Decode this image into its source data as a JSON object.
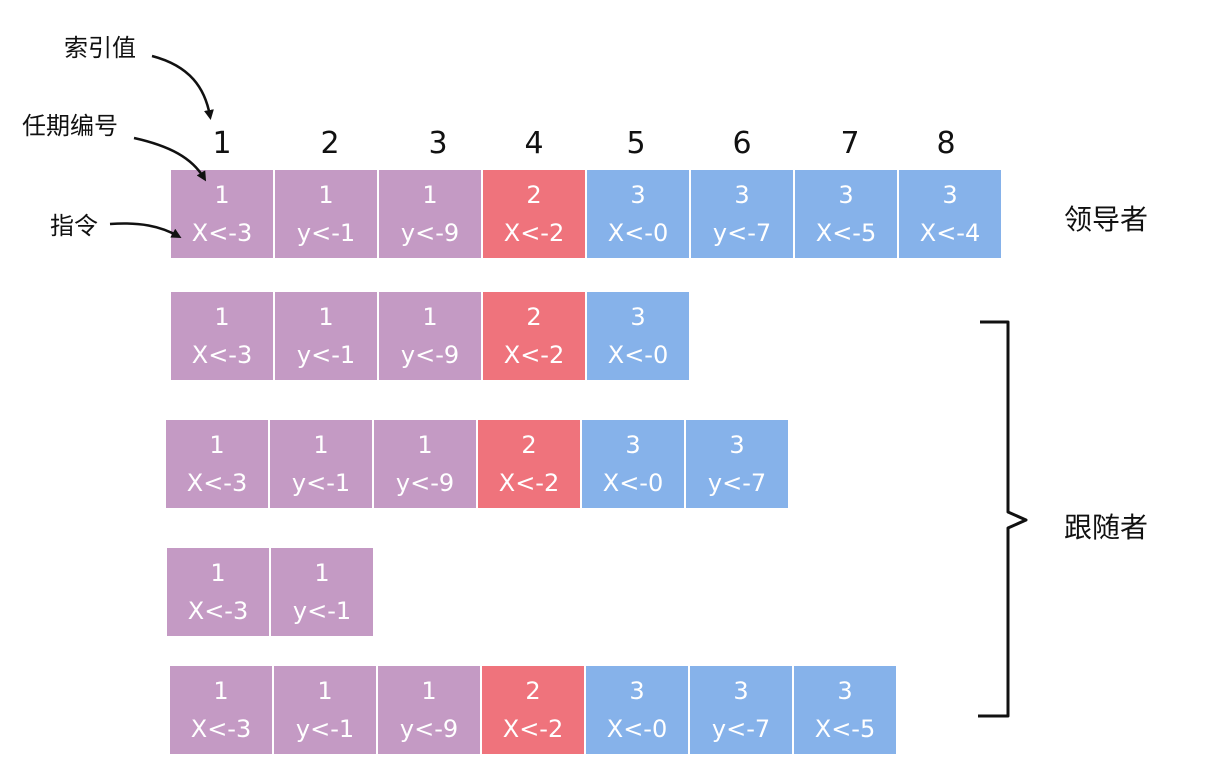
{
  "annotations": {
    "index_label": "索引值",
    "term_label": "任期编号",
    "command_label": "指令"
  },
  "indices": [
    "1",
    "2",
    "3",
    "4",
    "5",
    "6",
    "7",
    "8"
  ],
  "colors": {
    "term1": "#c49ac4",
    "term2": "#ef737c",
    "term3": "#86b2ea"
  },
  "leader": {
    "label": "领导者",
    "entries": [
      {
        "term": "1",
        "cmd": "X<-3"
      },
      {
        "term": "1",
        "cmd": "y<-1"
      },
      {
        "term": "1",
        "cmd": "y<-9"
      },
      {
        "term": "2",
        "cmd": "X<-2"
      },
      {
        "term": "3",
        "cmd": "X<-0"
      },
      {
        "term": "3",
        "cmd": "y<-7"
      },
      {
        "term": "3",
        "cmd": "X<-5"
      },
      {
        "term": "3",
        "cmd": "X<-4"
      }
    ]
  },
  "followers": {
    "label": "跟随者",
    "logs": [
      [
        {
          "term": "1",
          "cmd": "X<-3"
        },
        {
          "term": "1",
          "cmd": "y<-1"
        },
        {
          "term": "1",
          "cmd": "y<-9"
        },
        {
          "term": "2",
          "cmd": "X<-2"
        },
        {
          "term": "3",
          "cmd": "X<-0"
        }
      ],
      [
        {
          "term": "1",
          "cmd": "X<-3"
        },
        {
          "term": "1",
          "cmd": "y<-1"
        },
        {
          "term": "1",
          "cmd": "y<-9"
        },
        {
          "term": "2",
          "cmd": "X<-2"
        },
        {
          "term": "3",
          "cmd": "X<-0"
        },
        {
          "term": "3",
          "cmd": "y<-7"
        }
      ],
      [
        {
          "term": "1",
          "cmd": "X<-3"
        },
        {
          "term": "1",
          "cmd": "y<-1"
        }
      ],
      [
        {
          "term": "1",
          "cmd": "X<-3"
        },
        {
          "term": "1",
          "cmd": "y<-1"
        },
        {
          "term": "1",
          "cmd": "y<-9"
        },
        {
          "term": "2",
          "cmd": "X<-2"
        },
        {
          "term": "3",
          "cmd": "X<-0"
        },
        {
          "term": "3",
          "cmd": "y<-7"
        },
        {
          "term": "3",
          "cmd": "X<-5"
        }
      ]
    ]
  }
}
